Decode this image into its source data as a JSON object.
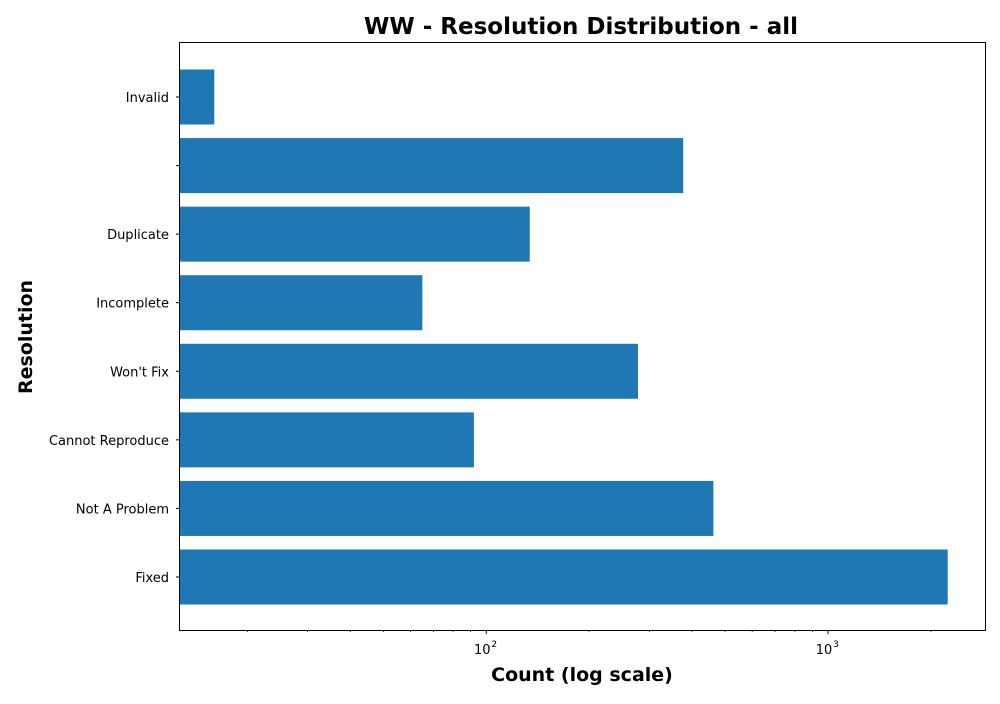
{
  "chart_data": {
    "type": "bar",
    "orientation": "horizontal",
    "title": "WW - Resolution Distribution - all",
    "xlabel": "Count (log scale)",
    "ylabel": "Resolution",
    "xscale": "log",
    "xlim": [
      12.7,
      2880
    ],
    "categories": [
      "Fixed",
      "Not A Problem",
      "Cannot Reproduce",
      "Won't Fix",
      "Incomplete",
      "Duplicate",
      "",
      "Invalid"
    ],
    "values": [
      2240,
      462,
      92,
      278,
      65,
      134,
      377,
      16
    ],
    "x_ticks": [
      {
        "base": "10",
        "exp": "2",
        "value": 100
      },
      {
        "base": "10",
        "exp": "3",
        "value": 1000
      }
    ],
    "bar_color": "#1f77b4",
    "legend": "none",
    "grid": false
  }
}
